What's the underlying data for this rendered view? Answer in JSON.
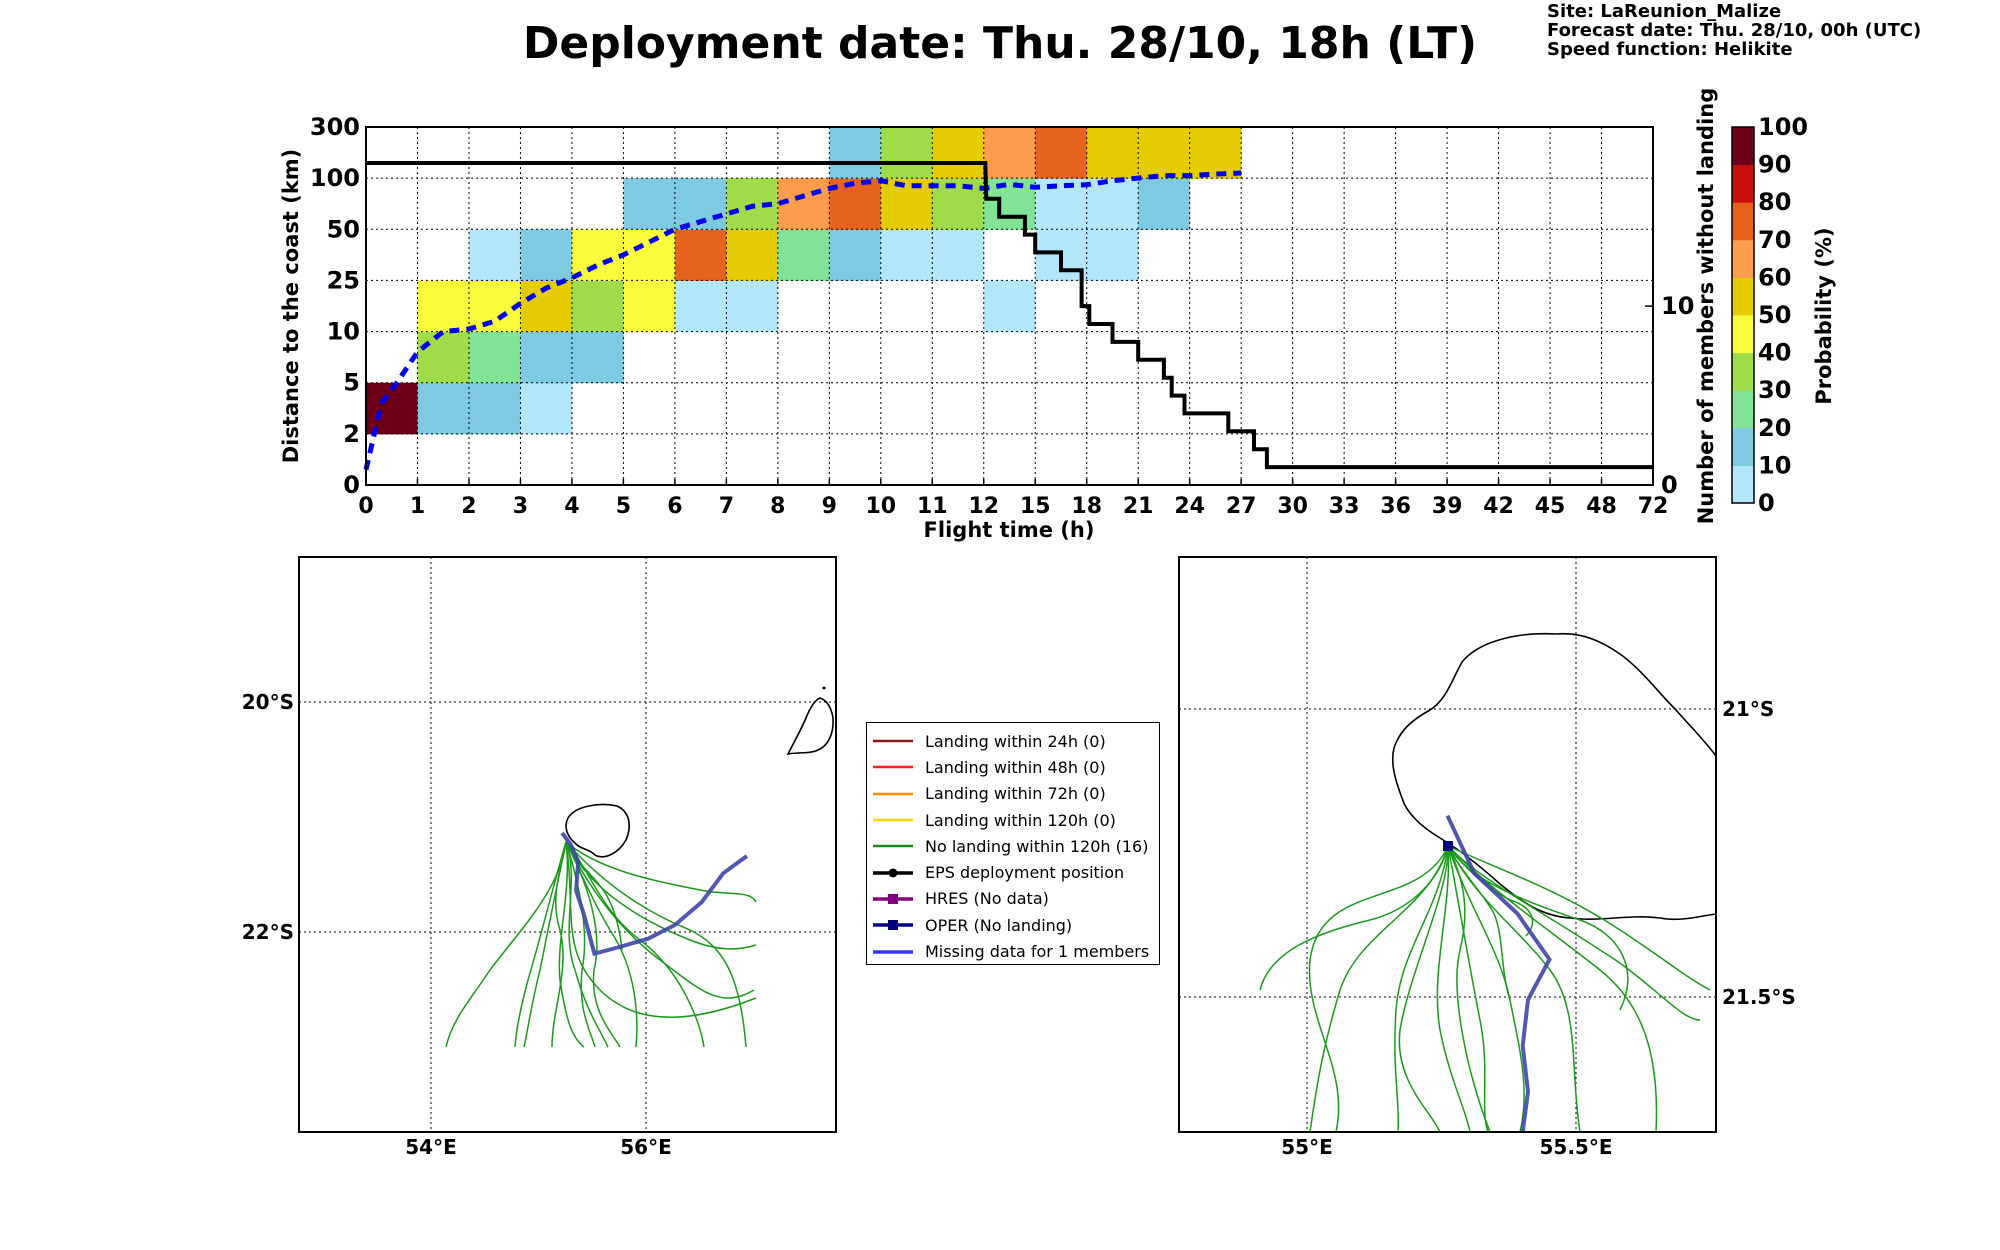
{
  "title": "Deployment date: Thu. 28/10, 18h (LT)",
  "meta": {
    "site": "Site: LaReunion_Malize",
    "forecast": "Forecast date: Thu. 28/10, 00h (UTC)",
    "speed": "Speed function: Helikite"
  },
  "chart_data": [
    {
      "type": "heatmap",
      "title": "",
      "xlabel": "Flight time (h)",
      "ylabel": "Distance to the coast (km)",
      "y2label": "Number of members without landing",
      "x_ticks": [
        "0",
        "1",
        "2",
        "3",
        "4",
        "5",
        "6",
        "7",
        "8",
        "9",
        "10",
        "11",
        "12",
        "15",
        "18",
        "21",
        "24",
        "27",
        "30",
        "33",
        "36",
        "39",
        "42",
        "45",
        "48",
        "72"
      ],
      "y_ticks": [
        "0",
        "2",
        "5",
        "10",
        "25",
        "50",
        "100",
        "300"
      ],
      "y2_ticks": [
        "0",
        "10"
      ],
      "y2_range": [
        0,
        18
      ],
      "colorbar": {
        "label": "Probability (%)",
        "ticks": [
          "0",
          "10",
          "20",
          "30",
          "40",
          "50",
          "60",
          "70",
          "80",
          "90",
          "100"
        ],
        "colors": [
          "#b3e5fb",
          "#7ecae3",
          "#80e395",
          "#a0db4a",
          "#f8fc3b",
          "#e5cc00",
          "#fd9c4d",
          "#e5631d",
          "#c80f0c",
          "#6d0016"
        ]
      },
      "cells": [
        {
          "x": 0,
          "y": 1,
          "p": 100
        },
        {
          "x": 1,
          "y": 1,
          "p": 10
        },
        {
          "x": 2,
          "y": 1,
          "p": 10
        },
        {
          "x": 3,
          "y": 1,
          "p": 5
        },
        {
          "x": 1,
          "y": 2,
          "p": 30
        },
        {
          "x": 2,
          "y": 2,
          "p": 20
        },
        {
          "x": 3,
          "y": 2,
          "p": 10
        },
        {
          "x": 4,
          "y": 2,
          "p": 10
        },
        {
          "x": 1,
          "y": 3,
          "p": 40
        },
        {
          "x": 2,
          "y": 3,
          "p": 40
        },
        {
          "x": 3,
          "y": 3,
          "p": 50
        },
        {
          "x": 4,
          "y": 3,
          "p": 30
        },
        {
          "x": 5,
          "y": 3,
          "p": 40
        },
        {
          "x": 6,
          "y": 3,
          "p": 5
        },
        {
          "x": 7,
          "y": 3,
          "p": 5
        },
        {
          "x": 12,
          "y": 3,
          "p": 5
        },
        {
          "x": 2,
          "y": 4,
          "p": 5
        },
        {
          "x": 3,
          "y": 4,
          "p": 10
        },
        {
          "x": 4,
          "y": 4,
          "p": 40
        },
        {
          "x": 5,
          "y": 4,
          "p": 40
        },
        {
          "x": 6,
          "y": 4,
          "p": 70
        },
        {
          "x": 7,
          "y": 4,
          "p": 50
        },
        {
          "x": 8,
          "y": 4,
          "p": 20
        },
        {
          "x": 9,
          "y": 4,
          "p": 10
        },
        {
          "x": 10,
          "y": 4,
          "p": 5
        },
        {
          "x": 11,
          "y": 4,
          "p": 5
        },
        {
          "x": 13,
          "y": 4,
          "p": 5
        },
        {
          "x": 14,
          "y": 4,
          "p": 5
        },
        {
          "x": 5,
          "y": 5,
          "p": 10
        },
        {
          "x": 6,
          "y": 5,
          "p": 10
        },
        {
          "x": 7,
          "y": 5,
          "p": 30
        },
        {
          "x": 8,
          "y": 5,
          "p": 60
        },
        {
          "x": 9,
          "y": 5,
          "p": 70
        },
        {
          "x": 10,
          "y": 5,
          "p": 50
        },
        {
          "x": 11,
          "y": 5,
          "p": 30
        },
        {
          "x": 12,
          "y": 5,
          "p": 20
        },
        {
          "x": 13,
          "y": 5,
          "p": 5
        },
        {
          "x": 14,
          "y": 5,
          "p": 5
        },
        {
          "x": 15,
          "y": 5,
          "p": 10
        },
        {
          "x": 9,
          "y": 6,
          "p": 10
        },
        {
          "x": 10,
          "y": 6,
          "p": 30
        },
        {
          "x": 11,
          "y": 6,
          "p": 50
        },
        {
          "x": 12,
          "y": 6,
          "p": 60
        },
        {
          "x": 13,
          "y": 6,
          "p": 70
        },
        {
          "x": 14,
          "y": 6,
          "p": 50
        },
        {
          "x": 15,
          "y": 6,
          "p": 50
        },
        {
          "x": 16,
          "y": 6,
          "p": 50
        }
      ],
      "median_line": {
        "name": "median",
        "points": [
          [
            0,
            0.3
          ],
          [
            0.3,
            1.6
          ],
          [
            0.6,
            2.0
          ],
          [
            1,
            2.6
          ],
          [
            1.5,
            3.0
          ],
          [
            2,
            3.05
          ],
          [
            2.5,
            3.2
          ],
          [
            3,
            3.55
          ],
          [
            3.5,
            3.85
          ],
          [
            4,
            4.05
          ],
          [
            4.5,
            4.3
          ],
          [
            5,
            4.5
          ],
          [
            5.5,
            4.75
          ],
          [
            6,
            5.0
          ],
          [
            6.5,
            5.15
          ],
          [
            7,
            5.3
          ],
          [
            7.5,
            5.45
          ],
          [
            8,
            5.5
          ],
          [
            8.5,
            5.65
          ],
          [
            9,
            5.8
          ],
          [
            9.5,
            5.9
          ],
          [
            10,
            5.95
          ],
          [
            10.5,
            5.85
          ],
          [
            11,
            5.85
          ],
          [
            11.5,
            5.85
          ],
          [
            12,
            5.8
          ],
          [
            12.5,
            5.88
          ],
          [
            13,
            5.82
          ],
          [
            13.5,
            5.85
          ],
          [
            14,
            5.87
          ],
          [
            14.5,
            5.95
          ],
          [
            15,
            6.0
          ],
          [
            15.5,
            6.05
          ],
          [
            16,
            6.05
          ],
          [
            16.5,
            6.08
          ],
          [
            17,
            6.1
          ]
        ]
      },
      "members_step": [
        [
          0,
          18
        ],
        [
          12.03,
          18
        ],
        [
          12.05,
          16
        ],
        [
          12.3,
          16
        ],
        [
          12.3,
          15
        ],
        [
          12.8,
          15
        ],
        [
          12.8,
          14
        ],
        [
          13,
          14
        ],
        [
          13,
          13
        ],
        [
          13.5,
          13
        ],
        [
          13.5,
          12
        ],
        [
          13.9,
          12
        ],
        [
          13.9,
          10
        ],
        [
          14.05,
          10
        ],
        [
          14.05,
          9
        ],
        [
          14.5,
          9
        ],
        [
          14.5,
          8
        ],
        [
          15,
          8
        ],
        [
          15,
          7
        ],
        [
          15.5,
          7
        ],
        [
          15.5,
          6
        ],
        [
          15.65,
          6
        ],
        [
          15.65,
          5
        ],
        [
          15.9,
          5
        ],
        [
          15.9,
          4
        ],
        [
          16.75,
          4
        ],
        [
          16.75,
          3
        ],
        [
          17.25,
          3
        ],
        [
          17.25,
          2
        ],
        [
          17.5,
          2
        ],
        [
          17.5,
          1
        ],
        [
          25,
          1
        ]
      ]
    },
    {
      "type": "map",
      "lon_ticks": [
        "54°E",
        "56°E"
      ],
      "lat_ticks": [
        "20°S",
        "22°S"
      ],
      "lon_range": [
        52.8,
        57.8
      ],
      "lat_range": [
        -23.8,
        -18.8
      ],
      "oper_track": [
        [
          55.25,
          -21.2
        ],
        [
          55.33,
          -21.3
        ],
        [
          55.4,
          -21.45
        ],
        [
          55.38,
          -21.7
        ],
        [
          55.45,
          -21.9
        ],
        [
          55.55,
          -22.25
        ],
        [
          55.75,
          -22.2
        ],
        [
          56.05,
          -22.12
        ],
        [
          56.3,
          -22.0
        ],
        [
          56.55,
          -21.8
        ],
        [
          56.75,
          -21.55
        ],
        [
          56.97,
          -21.4
        ]
      ]
    },
    {
      "type": "map",
      "lon_ticks": [
        "55°E",
        "55.5°E"
      ],
      "lat_ticks": [
        "21°S",
        "21.5°S"
      ],
      "lon_range": [
        54.75,
        55.75
      ],
      "lat_range": [
        -21.75,
        -20.75
      ],
      "oper_track": [
        [
          55.25,
          -21.2
        ],
        [
          55.3,
          -21.3
        ],
        [
          55.38,
          -21.37
        ],
        [
          55.44,
          -21.45
        ],
        [
          55.4,
          -21.52
        ],
        [
          55.39,
          -21.6
        ],
        [
          55.4,
          -21.68
        ],
        [
          55.39,
          -21.75
        ]
      ]
    }
  ],
  "legend": {
    "items": [
      {
        "label": "Landing within 24h (0)",
        "color": "#8b1a1a",
        "marker": "none"
      },
      {
        "label": "Landing within 48h (0)",
        "color": "#ff2020",
        "marker": "none"
      },
      {
        "label": "Landing within 72h (0)",
        "color": "#ff8c00",
        "marker": "none"
      },
      {
        "label": "Landing within 120h (0)",
        "color": "#ffd700",
        "marker": "none"
      },
      {
        "label": "No landing within 120h (16)",
        "color": "#1a8a1a",
        "marker": "none"
      },
      {
        "label": "EPS deployment position",
        "color": "#000000",
        "marker": "circle"
      },
      {
        "label": "HRES (No data)",
        "color": "#800080",
        "marker": "square"
      },
      {
        "label": "OPER (No landing)",
        "color": "#000080",
        "marker": "square"
      },
      {
        "label": "Missing data for 1 members",
        "color": "#3333ff",
        "marker": "none"
      }
    ]
  }
}
